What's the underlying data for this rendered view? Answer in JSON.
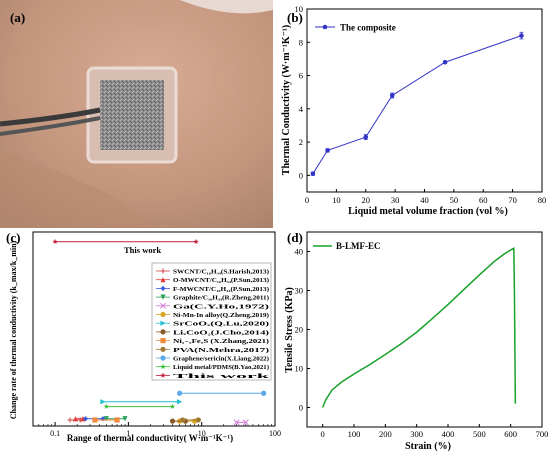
{
  "panel_labels": {
    "a": "(a)",
    "b": "(b)",
    "c": "(c)",
    "d": "(d)"
  },
  "colors": {
    "skin": "#c79b84",
    "skin_dark": "#a87b63",
    "skin_light": "#dbb49e",
    "patch_gray": "#8e8e8e",
    "wire": "#3a3a3a",
    "b_series": "#3535c8",
    "d_series": "#17a02a"
  },
  "chart_data": [
    {
      "panel": "(b)",
      "type": "line",
      "title": "",
      "xlabel": "Liquid metal volume fraction (vol %)",
      "ylabel": "Thermal Conductivity (W·m⁻¹K⁻¹)",
      "xlim": [
        0,
        80
      ],
      "ylim": [
        -1,
        10
      ],
      "xticks": [
        "0",
        "10",
        "20",
        "30",
        "40",
        "50",
        "60",
        "70",
        "80"
      ],
      "yticks": [
        "0",
        "2",
        "4",
        "6",
        "8",
        "10"
      ],
      "legend": "top-left",
      "grid": false,
      "series": [
        {
          "name": "The composite",
          "x": [
            2,
            7,
            20,
            29,
            47,
            73
          ],
          "y": [
            0.1,
            1.5,
            2.3,
            4.8,
            6.8,
            8.4
          ],
          "err": [
            0.1,
            0.1,
            0.15,
            0.15,
            0.05,
            0.2
          ]
        }
      ]
    },
    {
      "panel": "(c)",
      "type": "scatter",
      "xlabel": "Range of thermal conductivity( W·m⁻¹K⁻¹)",
      "ylabel": "Change rate of thermal conductivity (k_max/k_min)",
      "xscale": "log",
      "xlim": [
        0.05,
        100
      ],
      "ylim": [
        0,
        80
      ],
      "xticks": [
        "0.1",
        "1",
        "10",
        "100"
      ],
      "legend": "center-right",
      "grid": false,
      "annotation": "This work",
      "series": [
        {
          "name": "SWCNT/C₁₆H₃₄(S.Harish,2013)",
          "color": "#d04848",
          "marker": "+",
          "x": [
            0.16,
            0.22
          ],
          "y": [
            2.5,
            2.5
          ]
        },
        {
          "name": "O-MWCNT/C₁₆H₃₄(P.Sun,2013)",
          "color": "#e03b3b",
          "marker": "triangle",
          "x": [
            0.19,
            0.24
          ],
          "y": [
            3,
            3
          ]
        },
        {
          "name": "F-MWCNT/C₁₆H₃₄(P.Sun,2013)",
          "color": "#3c5bd9",
          "marker": "diamond",
          "x": [
            0.26,
            0.45
          ],
          "y": [
            3,
            3
          ]
        },
        {
          "name": "Graphite/C₁₆H₃₄(R.Zheng,2011)",
          "color": "#2ca05a",
          "marker": "triangle-down",
          "x": [
            0.5,
            0.9
          ],
          "y": [
            3,
            3
          ]
        },
        {
          "name": "Ga(C.Y.Ho,1972)",
          "color": "#d27ad8",
          "marker": "x",
          "x": [
            30,
            40
          ],
          "y": [
            1.5,
            1.5
          ]
        },
        {
          "name": "Ni-Mn-In alloy(Q.Zheng,2019)",
          "color": "#d9a322",
          "marker": "circle",
          "x": [
            5,
            8
          ],
          "y": [
            2,
            2
          ]
        },
        {
          "name": "SrCoOₓ(Q.Lu,2020)",
          "color": "#1ebfd0",
          "marker": "triangle-right",
          "x": [
            0.45,
            5
          ],
          "y": [
            10,
            10
          ]
        },
        {
          "name": "LiₓCoO₂(J.Cho,2014)",
          "color": "#8b5a2b",
          "marker": "circle",
          "x": [
            4,
            6
          ],
          "y": [
            2,
            2
          ]
        },
        {
          "name": "Ni₁₋ₓFeₓS (X.Zhang,2021)",
          "color": "#f08a3c",
          "marker": "square",
          "x": [
            0.35,
            0.7
          ],
          "y": [
            2.5,
            2.5
          ]
        },
        {
          "name": "PVA(N.Mehra,2017)",
          "color": "#a07830",
          "marker": "circle",
          "x": [
            5.5,
            9
          ],
          "y": [
            2.5,
            2.5
          ]
        },
        {
          "name": "Graphene/sericin(X.Liang,2022)",
          "color": "#5aa8e8",
          "marker": "circle",
          "x": [
            5,
            70
          ],
          "y": [
            13.5,
            13.5
          ]
        },
        {
          "name": "Liquid metal/PDMS(B.Yao,2021)",
          "color": "#3cbf3c",
          "marker": "star",
          "x": [
            0.5,
            4
          ],
          "y": [
            8,
            8
          ]
        },
        {
          "name": "This work",
          "color": "#c0203a",
          "marker": "star",
          "x": [
            0.1,
            8.4
          ],
          "y": [
            76,
            76
          ]
        }
      ]
    },
    {
      "panel": "(d)",
      "type": "line",
      "title": "",
      "xlabel": "Strain (%)",
      "ylabel": "Tensile Stress (KPa)",
      "xlim": [
        -50,
        700
      ],
      "ylim": [
        -5,
        45
      ],
      "xticks": [
        "0",
        "100",
        "200",
        "300",
        "400",
        "500",
        "600",
        "700"
      ],
      "yticks": [
        "0",
        "10",
        "20",
        "30",
        "40"
      ],
      "legend": "top-left",
      "grid": false,
      "series": [
        {
          "name": "B-LMF-EC",
          "x": [
            0,
            10,
            30,
            60,
            100,
            150,
            200,
            250,
            300,
            350,
            400,
            450,
            500,
            550,
            580,
            600,
            610,
            612,
            614,
            615
          ],
          "y": [
            0,
            2,
            4.5,
            6.5,
            8.6,
            11,
            13.6,
            16.3,
            19.3,
            22.8,
            26.4,
            30.2,
            34,
            37.6,
            39.4,
            40.4,
            40.8,
            30,
            10,
            1
          ]
        }
      ]
    }
  ]
}
